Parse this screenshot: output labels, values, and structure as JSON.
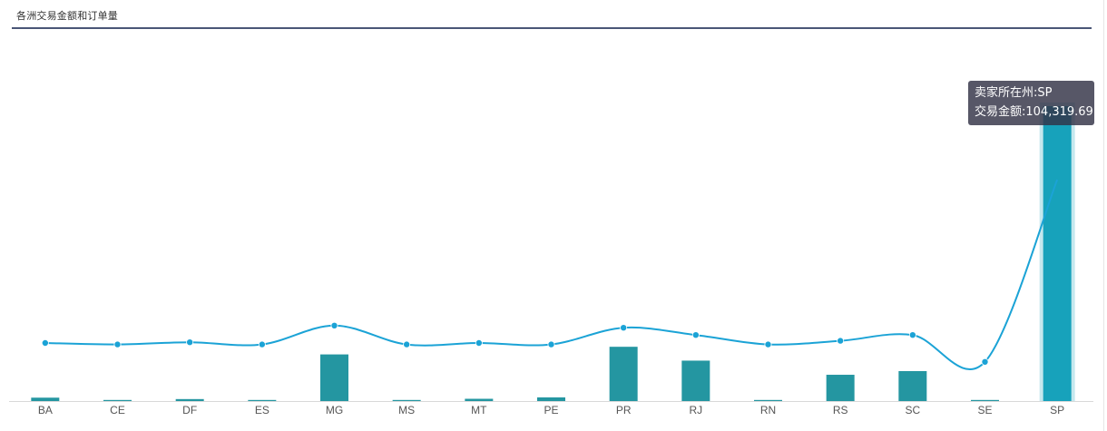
{
  "header": {
    "title": "各洲交易金额和订单量"
  },
  "tooltip": {
    "line1": "卖家所在州:SP",
    "line2": "交易金额:104,319.69"
  },
  "colors": {
    "bar": "#2496a1",
    "bar_highlight": "#17a2bb",
    "line": "#1ba3d6",
    "title_rule": "#4a5677",
    "axis_label": "#555555"
  },
  "chart_data": {
    "type": "bar",
    "categories": [
      "BA",
      "CE",
      "DF",
      "ES",
      "MG",
      "MS",
      "MT",
      "PE",
      "PR",
      "RJ",
      "RN",
      "RS",
      "SC",
      "SE",
      "SP"
    ],
    "series": [
      {
        "type": "bar",
        "name": "交易金额",
        "values": [
          1200,
          300,
          700,
          300,
          16500,
          300,
          800,
          1300,
          19200,
          14300,
          300,
          9300,
          10600,
          300,
          104319.69
        ]
      },
      {
        "type": "line",
        "smooth": true,
        "values": [
          40,
          38,
          41,
          38,
          64,
          38,
          40,
          38,
          61,
          51,
          38,
          43,
          51,
          14,
          265
        ]
      }
    ],
    "highlighted_category": "SP",
    "grid": false,
    "legend": "none"
  }
}
